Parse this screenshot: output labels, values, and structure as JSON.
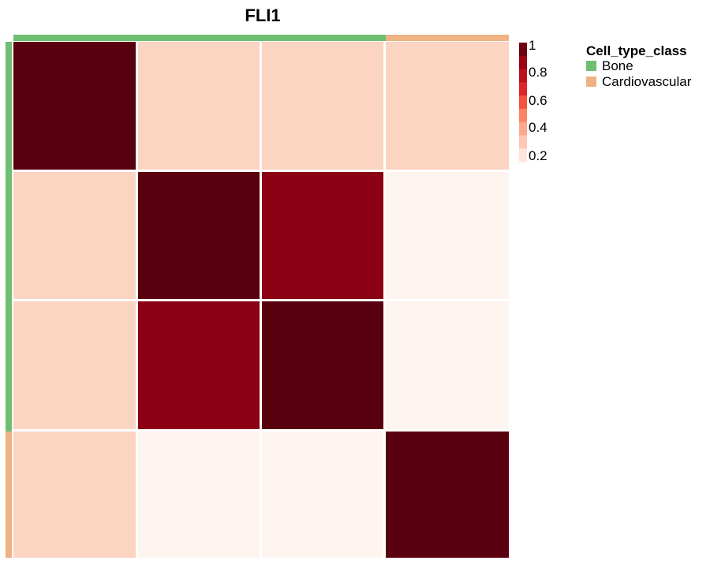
{
  "chart_data": {
    "type": "heatmap",
    "title": "FLI1",
    "rows": 4,
    "cols": 4,
    "values": [
      [
        1.0,
        0.3,
        0.3,
        0.3
      ],
      [
        0.3,
        1.0,
        0.9,
        0.2
      ],
      [
        0.3,
        0.9,
        1.0,
        0.2
      ],
      [
        0.3,
        0.2,
        0.2,
        1.0
      ]
    ],
    "row_class": [
      "Bone",
      "Bone",
      "Bone",
      "Cardiovascular"
    ],
    "col_class": [
      "Bone",
      "Bone",
      "Bone",
      "Cardiovascular"
    ],
    "colorbar": {
      "ticks": [
        "1",
        "0.8",
        "0.6",
        "0.4",
        "0.2"
      ],
      "range": [
        0.2,
        1.0
      ],
      "colors": [
        "#fff5f0",
        "#fcd4c2",
        "#fcb09a",
        "#fc8a6a",
        "#f5533b",
        "#d8222a",
        "#b10d17",
        "#8b0012",
        "#59000f"
      ]
    },
    "legend": {
      "title": "Cell_type_class",
      "entries": [
        {
          "label": "Bone",
          "color": "#6fbf73"
        },
        {
          "label": "Cardiovascular",
          "color": "#f0b183"
        }
      ],
      "placement": "right"
    },
    "grid": false
  }
}
